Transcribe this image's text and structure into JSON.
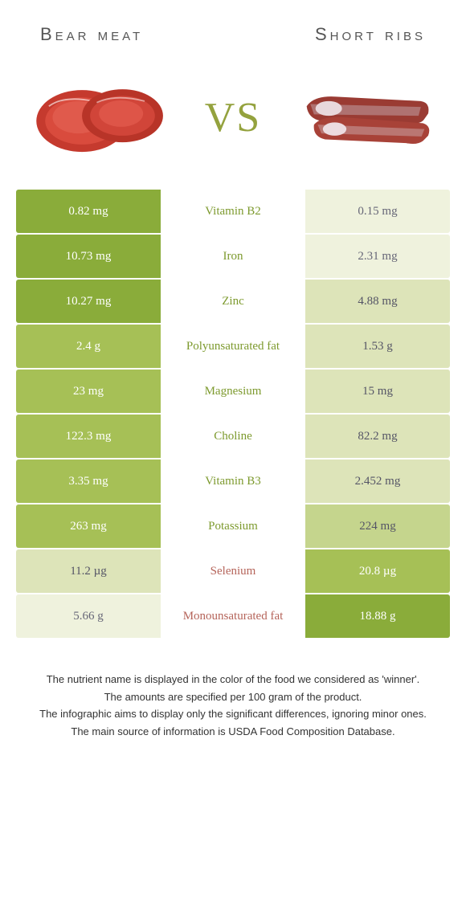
{
  "left_food": "Bear meat",
  "right_food": "Short ribs",
  "vs_label": "VS",
  "colors": {
    "green_winner": "#7d9a2e",
    "brown_winner": "#b5645a",
    "bg_shades": [
      "#8aac3a",
      "#a6c056",
      "#c5d58d",
      "#dde4b9",
      "#eff2dd"
    ],
    "bg_text_light": "#ffffff",
    "bg_text_dark": "#556677"
  },
  "rows": [
    {
      "nutrient": "Vitamin B2",
      "left": "0.82 mg",
      "right": "0.15 mg",
      "winner": "left",
      "left_shade": 0,
      "right_shade": 4
    },
    {
      "nutrient": "Iron",
      "left": "10.73 mg",
      "right": "2.31 mg",
      "winner": "left",
      "left_shade": 0,
      "right_shade": 4
    },
    {
      "nutrient": "Zinc",
      "left": "10.27 mg",
      "right": "4.88 mg",
      "winner": "left",
      "left_shade": 0,
      "right_shade": 3
    },
    {
      "nutrient": "Polyunsaturated fat",
      "left": "2.4 g",
      "right": "1.53 g",
      "winner": "left",
      "left_shade": 1,
      "right_shade": 3
    },
    {
      "nutrient": "Magnesium",
      "left": "23 mg",
      "right": "15 mg",
      "winner": "left",
      "left_shade": 1,
      "right_shade": 3
    },
    {
      "nutrient": "Choline",
      "left": "122.3 mg",
      "right": "82.2 mg",
      "winner": "left",
      "left_shade": 1,
      "right_shade": 3
    },
    {
      "nutrient": "Vitamin B3",
      "left": "3.35 mg",
      "right": "2.452 mg",
      "winner": "left",
      "left_shade": 1,
      "right_shade": 3
    },
    {
      "nutrient": "Potassium",
      "left": "263 mg",
      "right": "224 mg",
      "winner": "left",
      "left_shade": 1,
      "right_shade": 2
    },
    {
      "nutrient": "Selenium",
      "left": "11.2 µg",
      "right": "20.8 µg",
      "winner": "right",
      "left_shade": 3,
      "right_shade": 1
    },
    {
      "nutrient": "Monounsaturated fat",
      "left": "5.66 g",
      "right": "18.88 g",
      "winner": "right",
      "left_shade": 4,
      "right_shade": 0
    }
  ],
  "footer": [
    "The nutrient name is displayed in the color of the food we considered as 'winner'.",
    "The amounts are specified per 100 gram of the product.",
    "The infographic aims to display only the significant differences, ignoring minor ones.",
    "The main source of information is USDA Food Composition Database."
  ]
}
